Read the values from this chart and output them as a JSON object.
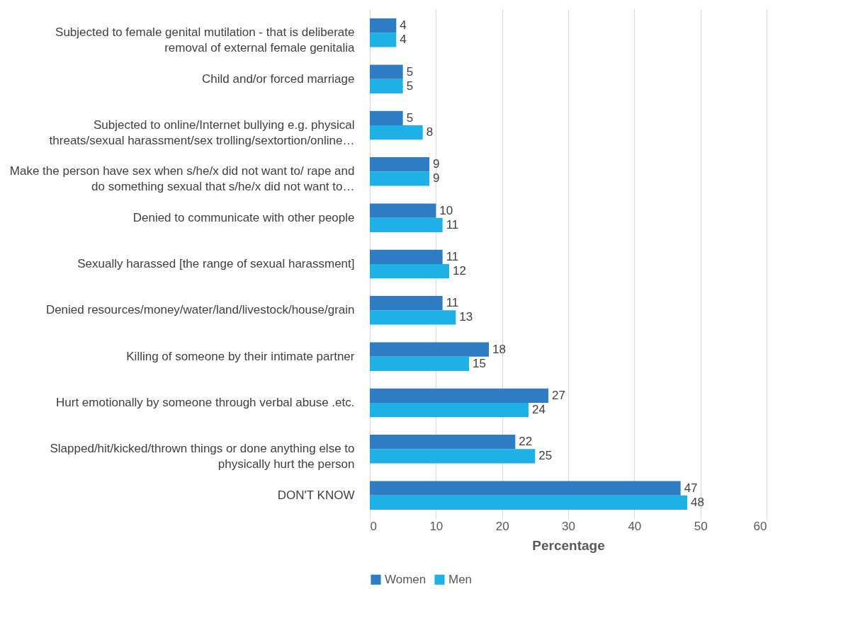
{
  "chart_data": {
    "type": "bar",
    "orientation": "horizontal",
    "xlabel": "Percentage",
    "categories": [
      "Subjected to female genital mutilation - that is deliberate removal of external female genitalia",
      "Child and/or forced marriage",
      "Subjected to online/Internet bullying e.g. physical threats/sexual harassment/sex trolling/sextortion/online…",
      "Make the person have sex when s/he/x did not want to/ rape and do something sexual that s/he/x did not want to…",
      "Denied to communicate with other people",
      "Sexually harassed [the range of sexual harassment]",
      "Denied resources/money/water/land/livestock/house/grain",
      "Killing of someone by their intimate partner",
      "Hurt emotionally by someone through verbal abuse .etc.",
      "Slapped/hit/kicked/thrown things or done anything else to physically hurt the person",
      "DON'T KNOW"
    ],
    "series": [
      {
        "name": "Women",
        "color": "#2e7dc4",
        "values": [
          4,
          5,
          5,
          9,
          10,
          11,
          11,
          18,
          27,
          22,
          47
        ]
      },
      {
        "name": "Men",
        "color": "#1fb0e6",
        "values": [
          4,
          5,
          8,
          9,
          11,
          12,
          13,
          15,
          24,
          25,
          48
        ]
      }
    ],
    "xlim": [
      0,
      60
    ],
    "xticks": [
      0,
      10,
      20,
      30,
      40,
      50,
      60
    ],
    "grid": "x",
    "legend": "bottom",
    "data_labels": true
  }
}
